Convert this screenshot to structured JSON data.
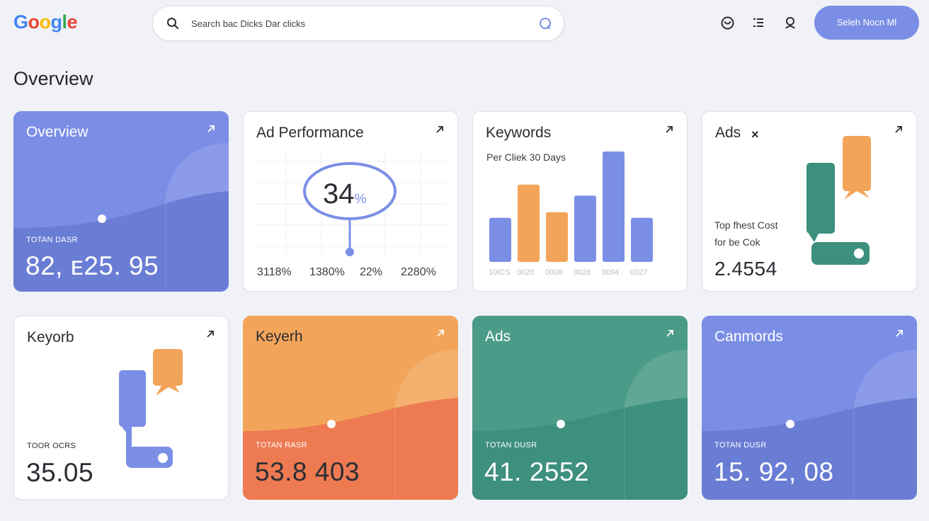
{
  "header": {
    "logo_letters": [
      "G",
      "o",
      "o",
      "g",
      "l",
      "e"
    ],
    "logo_colors": [
      "#4285f4",
      "#ea4335",
      "#fbbc05",
      "#4285f4",
      "#34a853",
      "#ea4335"
    ],
    "search_placeholder": "Search bac Dicks Dar clicks",
    "cta_label": "Seleh Nocn Ml",
    "icons": [
      "search-icon",
      "mic-icon",
      "emoji-icon",
      "list-icon",
      "account-icon"
    ]
  },
  "page": {
    "title": "Overview"
  },
  "colors": {
    "blue": "#7b8ee6",
    "orange": "#f2a55a",
    "coral": "#ee7a52",
    "teal": "#3d8f7e",
    "white": "#ffffff"
  },
  "cards": {
    "overview": {
      "title": "Overview",
      "label": "TOTAN DASR",
      "value": "82,  ᴇ25. 95"
    },
    "ad_performance": {
      "title": "Ad Performance",
      "ring_value": "34",
      "ring_unit": "%",
      "stats": [
        "3118%",
        "1380%",
        "22%",
        "2280%"
      ]
    },
    "keywords": {
      "title": "Keywords",
      "subtitle": "Per Cliek 30 Days",
      "ticks": [
        "10ICS",
        "0020",
        "0006",
        "0026",
        "0094",
        "0027"
      ]
    },
    "ads": {
      "title": "Ads",
      "desc_line1": "Top fhest Cost",
      "desc_line2": "for be Cok",
      "value": "2.4554"
    },
    "keyorb": {
      "title": "Keyorb",
      "label": "TOOR OCRS",
      "value": "35.05"
    },
    "keyerh": {
      "title": "Keyerh",
      "label": "TOTAN RASR",
      "value": "53.8 403"
    },
    "ads2": {
      "title": "Ads",
      "label": "TOTAN DUSR",
      "value": "41. 2552"
    },
    "canmords": {
      "title": "Canmords",
      "label": "TOTAN DUSR",
      "value": "15. 92, 08"
    }
  },
  "chart_data": {
    "type": "bar",
    "categories": [
      "10ICS",
      "0020",
      "0006",
      "0026",
      "0094",
      "0027"
    ],
    "values": [
      4,
      7,
      4.5,
      6,
      10,
      4
    ],
    "colors": [
      "#7b8ee6",
      "#f2a55a",
      "#f2a55a",
      "#7b8ee6",
      "#7b8ee6",
      "#7b8ee6"
    ],
    "title": "",
    "ylim": [
      0,
      10
    ]
  }
}
